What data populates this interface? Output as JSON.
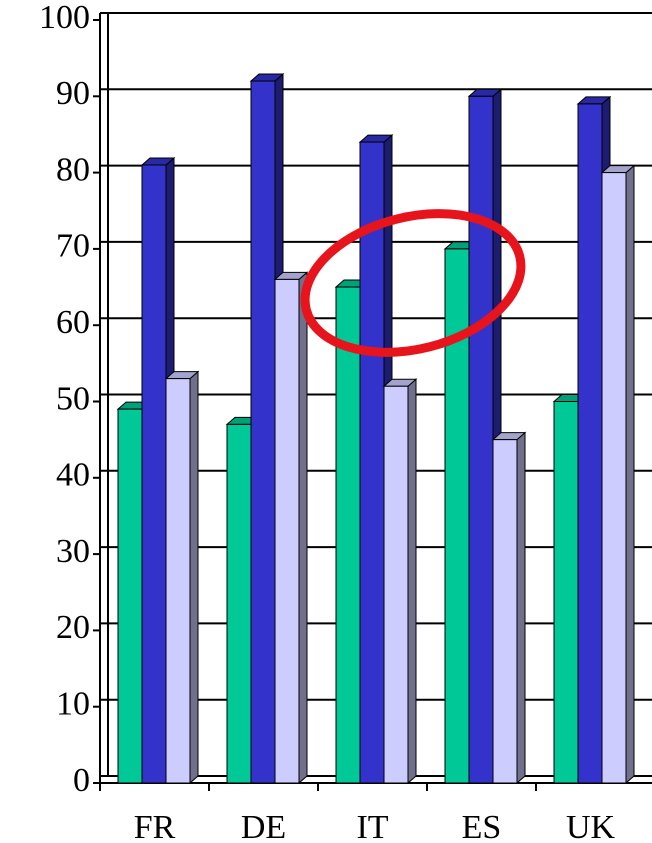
{
  "chart_data": {
    "type": "bar",
    "categories": [
      "FR",
      "DE",
      "IT",
      "ES",
      "UK"
    ],
    "series": [
      {
        "color": "#00c896",
        "values": [
          49,
          47,
          65,
          70,
          50
        ]
      },
      {
        "color": "#3333cc",
        "values": [
          81,
          92,
          84,
          90,
          89
        ]
      },
      {
        "color": "#ccccff",
        "values": [
          53,
          66,
          52,
          45,
          80
        ]
      }
    ],
    "ylim": [
      0,
      100
    ],
    "yticks": [
      0,
      10,
      20,
      30,
      40,
      50,
      60,
      70,
      80,
      90,
      100
    ],
    "grid": true
  }
}
